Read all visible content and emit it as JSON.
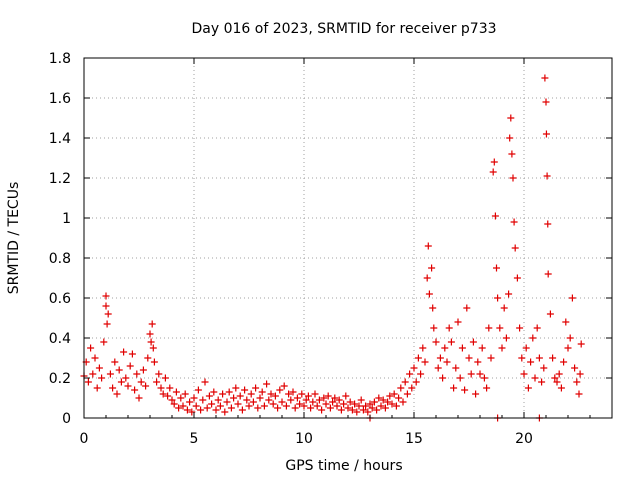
{
  "chart_data": {
    "type": "scatter",
    "title": "Day 016 of 2023, SRMTID for receiver p733",
    "xlabel": "GPS time / hours",
    "ylabel": "SRMTID / TECUs",
    "xlim": [
      0,
      24
    ],
    "ylim": [
      0,
      1.8
    ],
    "xticks": [
      {
        "value": 0,
        "label": "0"
      },
      {
        "value": 5,
        "label": "5"
      },
      {
        "value": 10,
        "label": "10"
      },
      {
        "value": 15,
        "label": "15"
      },
      {
        "value": 20,
        "label": "20"
      }
    ],
    "yticks": [
      {
        "value": 0,
        "label": "0"
      },
      {
        "value": 0.2,
        "label": "0.2"
      },
      {
        "value": 0.4,
        "label": "0.4"
      },
      {
        "value": 0.6,
        "label": "0.6"
      },
      {
        "value": 0.8,
        "label": "0.8"
      },
      {
        "value": 1,
        "label": "1"
      },
      {
        "value": 1.2,
        "label": "1.2"
      },
      {
        "value": 1.4,
        "label": "1.4"
      },
      {
        "value": 1.6,
        "label": "1.6"
      },
      {
        "value": 1.8,
        "label": "1.8"
      }
    ],
    "grid": true,
    "marker": "+",
    "color": "#e00000",
    "series": [
      {
        "name": "SRMTID",
        "points": [
          [
            0.0,
            0.21
          ],
          [
            0.1,
            0.28
          ],
          [
            0.2,
            0.18
          ],
          [
            0.3,
            0.35
          ],
          [
            0.4,
            0.22
          ],
          [
            0.5,
            0.3
          ],
          [
            0.6,
            0.15
          ],
          [
            0.7,
            0.25
          ],
          [
            0.8,
            0.2
          ],
          [
            0.9,
            0.38
          ],
          [
            1.0,
            0.61
          ],
          [
            1.0,
            0.56
          ],
          [
            1.05,
            0.47
          ],
          [
            1.1,
            0.52
          ],
          [
            1.2,
            0.22
          ],
          [
            1.3,
            0.15
          ],
          [
            1.4,
            0.28
          ],
          [
            1.5,
            0.12
          ],
          [
            1.6,
            0.24
          ],
          [
            1.7,
            0.18
          ],
          [
            1.8,
            0.33
          ],
          [
            1.9,
            0.2
          ],
          [
            2.0,
            0.16
          ],
          [
            2.1,
            0.26
          ],
          [
            2.2,
            0.32
          ],
          [
            2.3,
            0.14
          ],
          [
            2.4,
            0.22
          ],
          [
            2.5,
            0.1
          ],
          [
            2.6,
            0.18
          ],
          [
            2.7,
            0.24
          ],
          [
            2.8,
            0.16
          ],
          [
            2.9,
            0.3
          ],
          [
            3.0,
            0.42
          ],
          [
            3.05,
            0.38
          ],
          [
            3.1,
            0.47
          ],
          [
            3.15,
            0.35
          ],
          [
            3.2,
            0.28
          ],
          [
            3.3,
            0.18
          ],
          [
            3.4,
            0.22
          ],
          [
            3.5,
            0.15
          ],
          [
            3.6,
            0.12
          ],
          [
            3.7,
            0.2
          ],
          [
            3.8,
            0.11
          ],
          [
            3.9,
            0.15
          ],
          [
            4.0,
            0.09
          ],
          [
            4.1,
            0.07
          ],
          [
            4.2,
            0.13
          ],
          [
            4.3,
            0.05
          ],
          [
            4.4,
            0.1
          ],
          [
            4.5,
            0.06
          ],
          [
            4.6,
            0.12
          ],
          [
            4.7,
            0.04
          ],
          [
            4.8,
            0.08
          ],
          [
            4.9,
            0.03
          ],
          [
            5.0,
            0.1
          ],
          [
            5.1,
            0.06
          ],
          [
            5.2,
            0.14
          ],
          [
            5.3,
            0.04
          ],
          [
            5.4,
            0.09
          ],
          [
            5.5,
            0.18
          ],
          [
            5.6,
            0.05
          ],
          [
            5.7,
            0.11
          ],
          [
            5.8,
            0.07
          ],
          [
            5.9,
            0.13
          ],
          [
            6.0,
            0.04
          ],
          [
            6.1,
            0.09
          ],
          [
            6.2,
            0.06
          ],
          [
            6.3,
            0.12
          ],
          [
            6.4,
            0.03
          ],
          [
            6.5,
            0.08
          ],
          [
            6.6,
            0.13
          ],
          [
            6.7,
            0.05
          ],
          [
            6.8,
            0.1
          ],
          [
            6.9,
            0.15
          ],
          [
            7.0,
            0.07
          ],
          [
            7.1,
            0.11
          ],
          [
            7.2,
            0.04
          ],
          [
            7.3,
            0.14
          ],
          [
            7.4,
            0.09
          ],
          [
            7.5,
            0.06
          ],
          [
            7.6,
            0.12
          ],
          [
            7.7,
            0.08
          ],
          [
            7.8,
            0.15
          ],
          [
            7.9,
            0.05
          ],
          [
            8.0,
            0.1
          ],
          [
            8.1,
            0.13
          ],
          [
            8.2,
            0.06
          ],
          [
            8.3,
            0.17
          ],
          [
            8.4,
            0.09
          ],
          [
            8.5,
            0.12
          ],
          [
            8.6,
            0.07
          ],
          [
            8.7,
            0.11
          ],
          [
            8.8,
            0.05
          ],
          [
            8.9,
            0.14
          ],
          [
            9.0,
            0.08
          ],
          [
            9.1,
            0.16
          ],
          [
            9.2,
            0.06
          ],
          [
            9.3,
            0.12
          ],
          [
            9.4,
            0.09
          ],
          [
            9.5,
            0.13
          ],
          [
            9.6,
            0.05
          ],
          [
            9.7,
            0.1
          ],
          [
            9.8,
            0.07
          ],
          [
            9.9,
            0.12
          ],
          [
            10.0,
            0.06
          ],
          [
            10.1,
            0.09
          ],
          [
            10.2,
            0.11
          ],
          [
            10.3,
            0.05
          ],
          [
            10.4,
            0.08
          ],
          [
            10.5,
            0.12
          ],
          [
            10.6,
            0.06
          ],
          [
            10.7,
            0.09
          ],
          [
            10.8,
            0.04
          ],
          [
            10.9,
            0.1
          ],
          [
            11.0,
            0.07
          ],
          [
            11.1,
            0.11
          ],
          [
            11.2,
            0.05
          ],
          [
            11.3,
            0.08
          ],
          [
            11.4,
            0.1
          ],
          [
            11.5,
            0.06
          ],
          [
            11.6,
            0.09
          ],
          [
            11.7,
            0.04
          ],
          [
            11.8,
            0.07
          ],
          [
            11.9,
            0.11
          ],
          [
            12.0,
            0.05
          ],
          [
            12.1,
            0.08
          ],
          [
            12.2,
            0.04
          ],
          [
            12.3,
            0.07
          ],
          [
            12.4,
            0.03
          ],
          [
            12.5,
            0.06
          ],
          [
            12.6,
            0.09
          ],
          [
            12.7,
            0.04
          ],
          [
            12.8,
            0.06
          ],
          [
            12.9,
            0.03
          ],
          [
            13.0,
            0.07
          ],
          [
            13.1,
            0.05
          ],
          [
            13.2,
            0.08
          ],
          [
            13.3,
            0.04
          ],
          [
            13.4,
            0.1
          ],
          [
            13.5,
            0.06
          ],
          [
            13.6,
            0.09
          ],
          [
            13.7,
            0.05
          ],
          [
            13.8,
            0.08
          ],
          [
            13.9,
            0.11
          ],
          [
            14.0,
            0.07
          ],
          [
            14.1,
            0.12
          ],
          [
            14.2,
            0.06
          ],
          [
            14.3,
            0.1
          ],
          [
            14.4,
            0.15
          ],
          [
            14.5,
            0.08
          ],
          [
            14.6,
            0.18
          ],
          [
            14.7,
            0.12
          ],
          [
            14.8,
            0.22
          ],
          [
            14.9,
            0.15
          ],
          [
            15.0,
            0.25
          ],
          [
            15.1,
            0.18
          ],
          [
            15.2,
            0.3
          ],
          [
            15.3,
            0.22
          ],
          [
            15.4,
            0.35
          ],
          [
            15.5,
            0.28
          ],
          [
            15.6,
            0.7
          ],
          [
            15.65,
            0.86
          ],
          [
            15.7,
            0.62
          ],
          [
            15.8,
            0.75
          ],
          [
            15.85,
            0.55
          ],
          [
            15.9,
            0.45
          ],
          [
            16.0,
            0.38
          ],
          [
            16.1,
            0.25
          ],
          [
            16.2,
            0.3
          ],
          [
            16.3,
            0.2
          ],
          [
            16.4,
            0.35
          ],
          [
            16.5,
            0.28
          ],
          [
            16.6,
            0.45
          ],
          [
            16.7,
            0.38
          ],
          [
            16.8,
            0.15
          ],
          [
            16.9,
            0.25
          ],
          [
            17.0,
            0.48
          ],
          [
            17.1,
            0.2
          ],
          [
            17.2,
            0.35
          ],
          [
            17.3,
            0.14
          ],
          [
            17.4,
            0.55
          ],
          [
            17.5,
            0.3
          ],
          [
            17.6,
            0.22
          ],
          [
            17.7,
            0.38
          ],
          [
            17.8,
            0.12
          ],
          [
            17.9,
            0.28
          ],
          [
            18.0,
            0.22
          ],
          [
            18.1,
            0.35
          ],
          [
            18.2,
            0.2
          ],
          [
            18.3,
            0.15
          ],
          [
            18.4,
            0.45
          ],
          [
            18.5,
            0.3
          ],
          [
            18.6,
            1.23
          ],
          [
            18.65,
            1.28
          ],
          [
            18.7,
            1.01
          ],
          [
            18.75,
            0.75
          ],
          [
            18.8,
            0.6
          ],
          [
            18.9,
            0.45
          ],
          [
            19.0,
            0.35
          ],
          [
            19.1,
            0.55
          ],
          [
            19.2,
            0.4
          ],
          [
            19.3,
            0.62
          ],
          [
            19.35,
            1.4
          ],
          [
            19.4,
            1.5
          ],
          [
            19.45,
            1.32
          ],
          [
            19.5,
            1.2
          ],
          [
            19.55,
            0.98
          ],
          [
            19.6,
            0.85
          ],
          [
            19.7,
            0.7
          ],
          [
            19.8,
            0.45
          ],
          [
            19.9,
            0.3
          ],
          [
            20.0,
            0.22
          ],
          [
            20.1,
            0.35
          ],
          [
            20.2,
            0.15
          ],
          [
            20.3,
            0.28
          ],
          [
            20.4,
            0.4
          ],
          [
            20.5,
            0.2
          ],
          [
            20.6,
            0.45
          ],
          [
            20.7,
            0.3
          ],
          [
            20.8,
            0.18
          ],
          [
            20.9,
            0.25
          ],
          [
            20.95,
            1.7
          ],
          [
            21.0,
            1.58
          ],
          [
            21.02,
            1.42
          ],
          [
            21.05,
            1.21
          ],
          [
            21.08,
            0.97
          ],
          [
            21.1,
            0.72
          ],
          [
            21.2,
            0.52
          ],
          [
            21.3,
            0.3
          ],
          [
            21.4,
            0.2
          ],
          [
            21.5,
            0.18
          ],
          [
            21.6,
            0.22
          ],
          [
            21.7,
            0.15
          ],
          [
            21.8,
            0.28
          ],
          [
            21.9,
            0.48
          ],
          [
            22.0,
            0.35
          ],
          [
            22.1,
            0.4
          ],
          [
            22.2,
            0.6
          ],
          [
            22.3,
            0.25
          ],
          [
            22.4,
            0.18
          ],
          [
            22.5,
            0.12
          ],
          [
            22.55,
            0.22
          ],
          [
            22.6,
            0.37
          ],
          [
            18.8,
            0.0
          ],
          [
            20.7,
            0.0
          ],
          [
            13.0,
            0.0
          ]
        ]
      }
    ]
  }
}
